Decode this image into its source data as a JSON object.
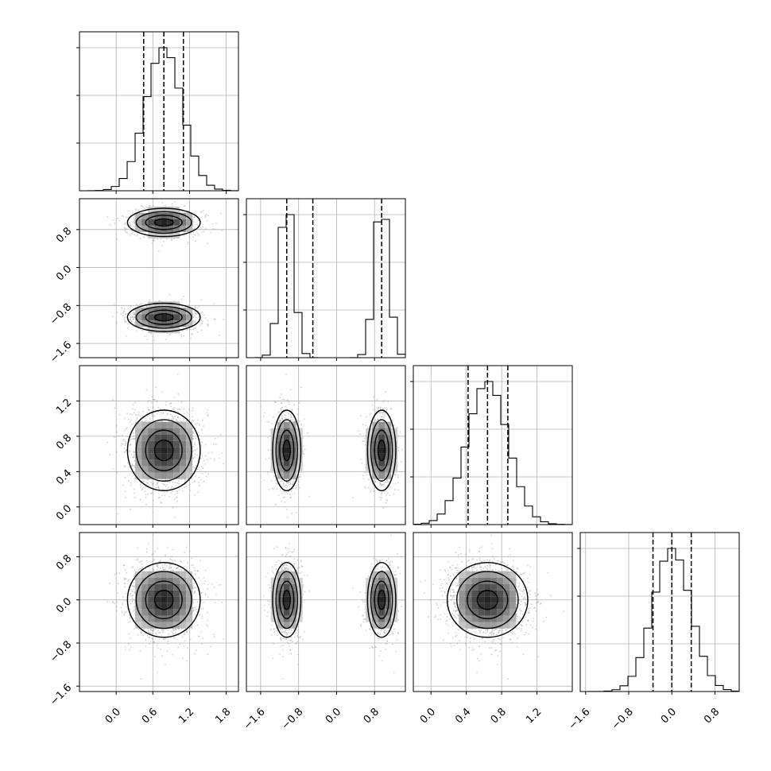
{
  "chart_data": {
    "type": "corner",
    "n_params": 4,
    "params": [
      {
        "index": 0,
        "range": [
          -0.6,
          2.0
        ],
        "ticks": [
          0.0,
          0.6,
          1.2,
          1.8
        ],
        "tick_labels": [
          "0.0",
          "0.6",
          "1.2",
          "1.8"
        ],
        "distribution": {
          "modes": [
            {
              "mean": 0.78,
              "sd": 0.3,
              "weight": 1
            }
          ]
        },
        "quantiles": [
          0.45,
          0.78,
          1.1
        ]
      },
      {
        "index": 1,
        "range": [
          -1.9,
          1.45
        ],
        "ticks": [
          -1.6,
          -0.8,
          0.0,
          0.8
        ],
        "tick_labels": [
          "−1.6",
          "−0.8",
          "0.0",
          "0.8"
        ],
        "distribution": {
          "modes": [
            {
              "mean": -1.05,
              "sd": 0.15,
              "weight": 0.5
            },
            {
              "mean": 0.95,
              "sd": 0.15,
              "weight": 0.5
            }
          ]
        },
        "quantiles": [
          -1.05,
          -0.5,
          0.95
        ]
      },
      {
        "index": 2,
        "range": [
          -0.2,
          1.6
        ],
        "ticks": [
          0.0,
          0.4,
          0.8,
          1.2
        ],
        "tick_labels": [
          "0.0",
          "0.4",
          "0.8",
          "1.2"
        ],
        "distribution": {
          "modes": [
            {
              "mean": 0.64,
              "sd": 0.23,
              "weight": 1
            }
          ]
        },
        "quantiles": [
          0.42,
          0.64,
          0.87
        ]
      },
      {
        "index": 3,
        "range": [
          -1.7,
          1.25
        ],
        "ticks": [
          -1.6,
          -0.8,
          0.0,
          0.8
        ],
        "tick_labels": [
          "−1.6",
          "−0.8",
          "0.0",
          "0.8"
        ],
        "distribution": {
          "modes": [
            {
              "mean": 0.0,
              "sd": 0.35,
              "weight": 1
            }
          ]
        },
        "quantiles": [
          -0.35,
          0.0,
          0.36
        ]
      }
    ],
    "histogram_bins": 20,
    "contour_levels": [
      0.12,
      0.39,
      0.68,
      0.86
    ],
    "scatter_color": "#9a9a9a",
    "grid": true
  }
}
